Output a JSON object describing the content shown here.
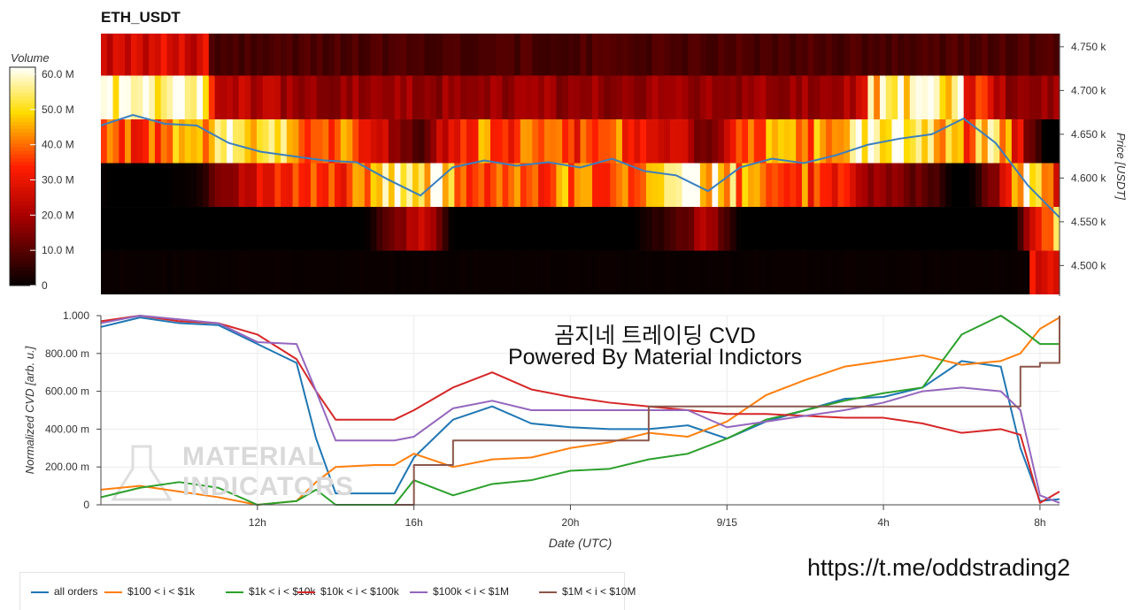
{
  "colors": {
    "all_orders": "#1f77b4",
    "b100_1k": "#ff7f0e",
    "b1k_10k": "#2ca02c",
    "b10k_100k": "#d62728",
    "b100k_1m": "#9467bd",
    "b1m_10m": "#8c564b",
    "price_line": "#3a7fbf"
  },
  "overlay": {
    "line1": "곰지네 트레이딩 CVD",
    "line2": "Powered By Material Indictors",
    "link": "https://t.me/oddstrading2"
  },
  "watermark": {
    "line1": "MATERIAL",
    "line2": "INDICATORS"
  },
  "chart_data": [
    {
      "type": "heatmap",
      "title": "ETH_USDT",
      "ylabel": "Price [USDT]",
      "yticks": [
        "4.500 k",
        "4.550 k",
        "4.600 k",
        "4.650 k",
        "4.700 k",
        "4.750 k"
      ],
      "ytick_values": [
        4500,
        4550,
        4600,
        4650,
        4700,
        4750
      ],
      "ylim": [
        4465,
        4765
      ],
      "xlim": [
        0,
        30
      ],
      "price_bands": [
        4740,
        4692,
        4642,
        4592,
        4542,
        4492
      ],
      "colorbar": {
        "title": "Volume",
        "ticks": [
          "0",
          "10.0 M",
          "20.0 M",
          "30.0 M",
          "40.0 M",
          "50.0 M",
          "60.0 M"
        ],
        "tick_values": [
          0,
          10,
          20,
          30,
          40,
          50,
          60
        ],
        "range": [
          0,
          62
        ]
      },
      "price_series": {
        "x": [
          0,
          1,
          2,
          3,
          4,
          5,
          6,
          7,
          8,
          9,
          10,
          11,
          12,
          13,
          14,
          15,
          16,
          17,
          18,
          19,
          20,
          21,
          22,
          23,
          24,
          25,
          26,
          27,
          28,
          29,
          30
        ],
        "y": [
          4660,
          4672,
          4662,
          4660,
          4640,
          4630,
          4625,
          4620,
          4618,
          4598,
          4580,
          4612,
          4620,
          4614,
          4618,
          4612,
          4622,
          4608,
          4603,
          4585,
          4612,
          4622,
          4617,
          4626,
          4638,
          4645,
          4650,
          4668,
          4640,
          4592,
          4555
        ]
      }
    },
    {
      "type": "line",
      "xlabel": "Date (UTC)",
      "ylabel": "Normalized CVD [arb. u.]",
      "xticks": [
        "12h",
        "16h",
        "20h",
        "9/15",
        "4h",
        "8h"
      ],
      "xtick_values": [
        4,
        8,
        12,
        16,
        20,
        24
      ],
      "xlim": [
        0,
        24.5
      ],
      "yticks": [
        "0",
        "200.00 m",
        "400.00 m",
        "600.00 m",
        "800.00 m",
        "1.000"
      ],
      "ytick_values": [
        0,
        0.2,
        0.4,
        0.6,
        0.8,
        1.0
      ],
      "ylim": [
        0,
        1.0
      ],
      "x": [
        0,
        1,
        2,
        3,
        4,
        5,
        5.5,
        6,
        7,
        7.5,
        8,
        9,
        10,
        11,
        12,
        13,
        14,
        15,
        16,
        17,
        18,
        19,
        20,
        21,
        22,
        23,
        23.5,
        24,
        24.5
      ],
      "series": [
        {
          "name": "all orders",
          "key": "all_orders",
          "values": [
            0.94,
            0.99,
            0.96,
            0.95,
            0.85,
            0.75,
            0.35,
            0.06,
            0.06,
            0.06,
            0.25,
            0.45,
            0.52,
            0.43,
            0.41,
            0.4,
            0.4,
            0.42,
            0.35,
            0.44,
            0.5,
            0.56,
            0.57,
            0.62,
            0.76,
            0.73,
            0.3,
            0.02,
            0.03
          ]
        },
        {
          "name": "$100 < i < $1k",
          "key": "b100_1k",
          "values": [
            0.08,
            0.1,
            0.07,
            0.04,
            0.0,
            0.02,
            0.12,
            0.2,
            0.21,
            0.21,
            0.27,
            0.2,
            0.24,
            0.25,
            0.3,
            0.33,
            0.38,
            0.36,
            0.44,
            0.58,
            0.66,
            0.73,
            0.76,
            0.79,
            0.74,
            0.76,
            0.8,
            0.93,
            0.99
          ]
        },
        {
          "name": "$1k < i < $10k",
          "key": "b1k_10k",
          "values": [
            0.04,
            0.09,
            0.12,
            0.09,
            0.0,
            0.02,
            0.08,
            0.0,
            0.0,
            0.0,
            0.13,
            0.05,
            0.11,
            0.13,
            0.18,
            0.19,
            0.24,
            0.27,
            0.35,
            0.45,
            0.5,
            0.55,
            0.59,
            0.62,
            0.9,
            1.0,
            0.93,
            0.85,
            0.85
          ]
        },
        {
          "name": "$10k < i < $100k",
          "key": "b10k_100k",
          "values": [
            0.97,
            1.0,
            0.97,
            0.96,
            0.9,
            0.77,
            0.6,
            0.45,
            0.45,
            0.45,
            0.5,
            0.62,
            0.7,
            0.61,
            0.57,
            0.54,
            0.52,
            0.5,
            0.48,
            0.48,
            0.47,
            0.46,
            0.46,
            0.43,
            0.38,
            0.4,
            0.37,
            0.01,
            0.07
          ]
        },
        {
          "name": "$100k < i < $1M",
          "key": "b100k_1m",
          "values": [
            0.96,
            1.0,
            0.98,
            0.96,
            0.86,
            0.85,
            0.6,
            0.34,
            0.34,
            0.34,
            0.36,
            0.51,
            0.55,
            0.5,
            0.5,
            0.5,
            0.5,
            0.5,
            0.41,
            0.44,
            0.47,
            0.5,
            0.54,
            0.6,
            0.62,
            0.6,
            0.5,
            0.05,
            0.01
          ]
        },
        {
          "name": "$1M < i < $10M",
          "key": "b1m_10m",
          "values": [
            null,
            null,
            null,
            null,
            null,
            null,
            null,
            null,
            null,
            0.0,
            0.21,
            0.34,
            0.34,
            0.34,
            0.34,
            0.34,
            0.52,
            0.52,
            0.52,
            0.52,
            0.52,
            0.52,
            0.52,
            0.52,
            0.52,
            0.52,
            0.73,
            0.75,
            1.0
          ]
        }
      ]
    }
  ]
}
